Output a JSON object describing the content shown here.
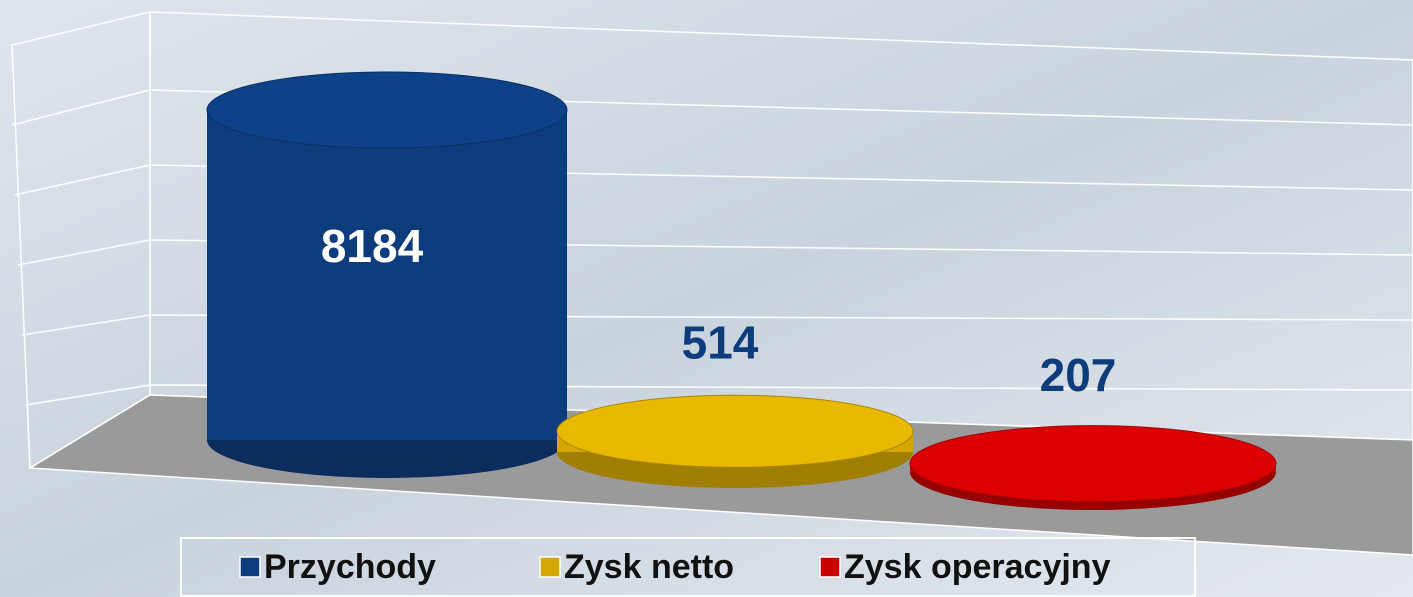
{
  "chart_data": {
    "type": "bar",
    "series": [
      {
        "name": "Przychody",
        "color": "#0d3c7c",
        "values": [
          8184
        ]
      },
      {
        "name": "Zysk netto",
        "color": "#d4a800",
        "values": [
          514
        ]
      },
      {
        "name": "Zysk operacyjny",
        "color": "#c80000",
        "values": [
          207
        ]
      }
    ]
  }
}
